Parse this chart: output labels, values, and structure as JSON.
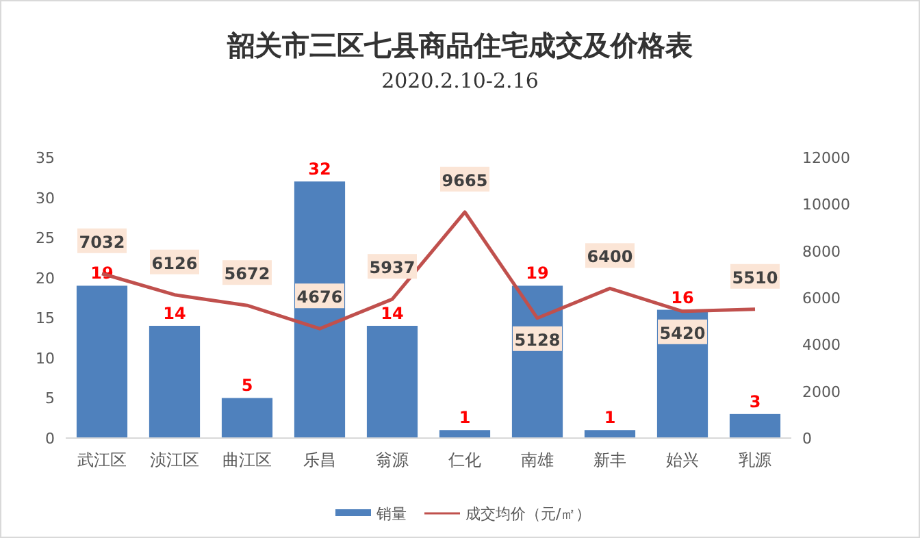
{
  "chart_data": {
    "type": "bar",
    "title": "韶关市三区七县商品住宅成交及价格表",
    "subtitle": "2020.2.10-2.16",
    "categories": [
      "武江区",
      "浈江区",
      "曲江区",
      "乐昌",
      "翁源",
      "仁化",
      "南雄",
      "新丰",
      "始兴",
      "乳源"
    ],
    "series": [
      {
        "name": "销量",
        "color": "#4f81bd",
        "values": [
          19,
          14,
          5,
          32,
          14,
          1,
          19,
          1,
          16,
          3
        ]
      },
      {
        "name": "成交均价（元/㎡）",
        "type": "line",
        "axis": "y2",
        "color": "#c0504d",
        "values": [
          7032,
          6126,
          5672,
          4676,
          5937,
          9665,
          5128,
          6400,
          5420,
          5510
        ]
      }
    ],
    "ylim": [
      0,
      35
    ],
    "yticks": [
      0,
      5,
      10,
      15,
      20,
      25,
      30,
      35
    ],
    "y2lim": [
      0,
      12000
    ],
    "y2ticks": [
      0,
      2000,
      4000,
      6000,
      8000,
      10000,
      12000
    ],
    "data_labels": true,
    "legend": "bottom",
    "marker": "none",
    "line_style": "solid",
    "grid": false
  }
}
